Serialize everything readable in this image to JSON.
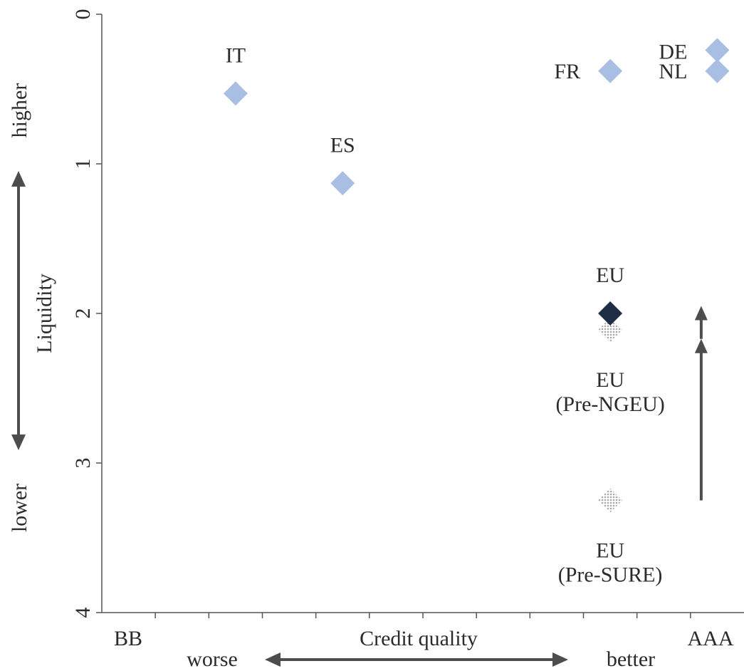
{
  "chart_data": {
    "type": "scatter",
    "title": "",
    "x_axis": {
      "label": "Credit quality",
      "range": [
        0,
        12
      ],
      "tick_count": 12,
      "end_labels": {
        "left": "BB",
        "right": "AAA"
      },
      "direction_labels": {
        "left": "worse",
        "right": "better"
      },
      "direction_arrow": "double"
    },
    "y_axis": {
      "label": "Liquidity",
      "range": [
        0,
        4
      ],
      "reversed": true,
      "ticks": [
        "0",
        "1",
        "2",
        "3",
        "4"
      ],
      "direction_labels": {
        "top": "higher",
        "bottom": "lower"
      },
      "direction_arrow": "double"
    },
    "grid": false,
    "legend": "none",
    "points": [
      {
        "label": "IT",
        "x": 2.5,
        "y": 0.53,
        "style": "light",
        "label_position": "above"
      },
      {
        "label": "ES",
        "x": 4.5,
        "y": 1.13,
        "style": "light",
        "label_position": "above"
      },
      {
        "label": "FR",
        "x": 9.5,
        "y": 0.38,
        "style": "light",
        "label_position": "left"
      },
      {
        "label": "DE",
        "x": 11.5,
        "y": 0.24,
        "style": "light",
        "label_position": "left"
      },
      {
        "label": "NL",
        "x": 11.5,
        "y": 0.38,
        "style": "light",
        "label_position": "left"
      },
      {
        "label": "EU",
        "x": 9.5,
        "y": 2.0,
        "style": "dark",
        "label_position": "above"
      },
      {
        "label": "EU (Pre-NGEU)",
        "lines": [
          "EU",
          "(Pre-NGEU)"
        ],
        "x": 9.5,
        "y": 2.11,
        "style": "dotted",
        "label_position": "below"
      },
      {
        "label": "EU (Pre-SURE)",
        "lines": [
          "EU",
          "(Pre-SURE)"
        ],
        "x": 9.5,
        "y": 3.25,
        "style": "dotted",
        "label_position": "below"
      }
    ],
    "annotation_arrows": [
      {
        "x": 11.2,
        "from_y": 3.25,
        "to_y": 2.17
      },
      {
        "x": 11.2,
        "from_y": 2.17,
        "to_y": 1.95
      }
    ],
    "colors": {
      "light": "#a8bfe3",
      "dark": "#1f2d45",
      "dotted": "#bdbdbd",
      "axis": "#555555",
      "text": "#2b2b2b",
      "arrow": "#4d4d4d"
    }
  }
}
